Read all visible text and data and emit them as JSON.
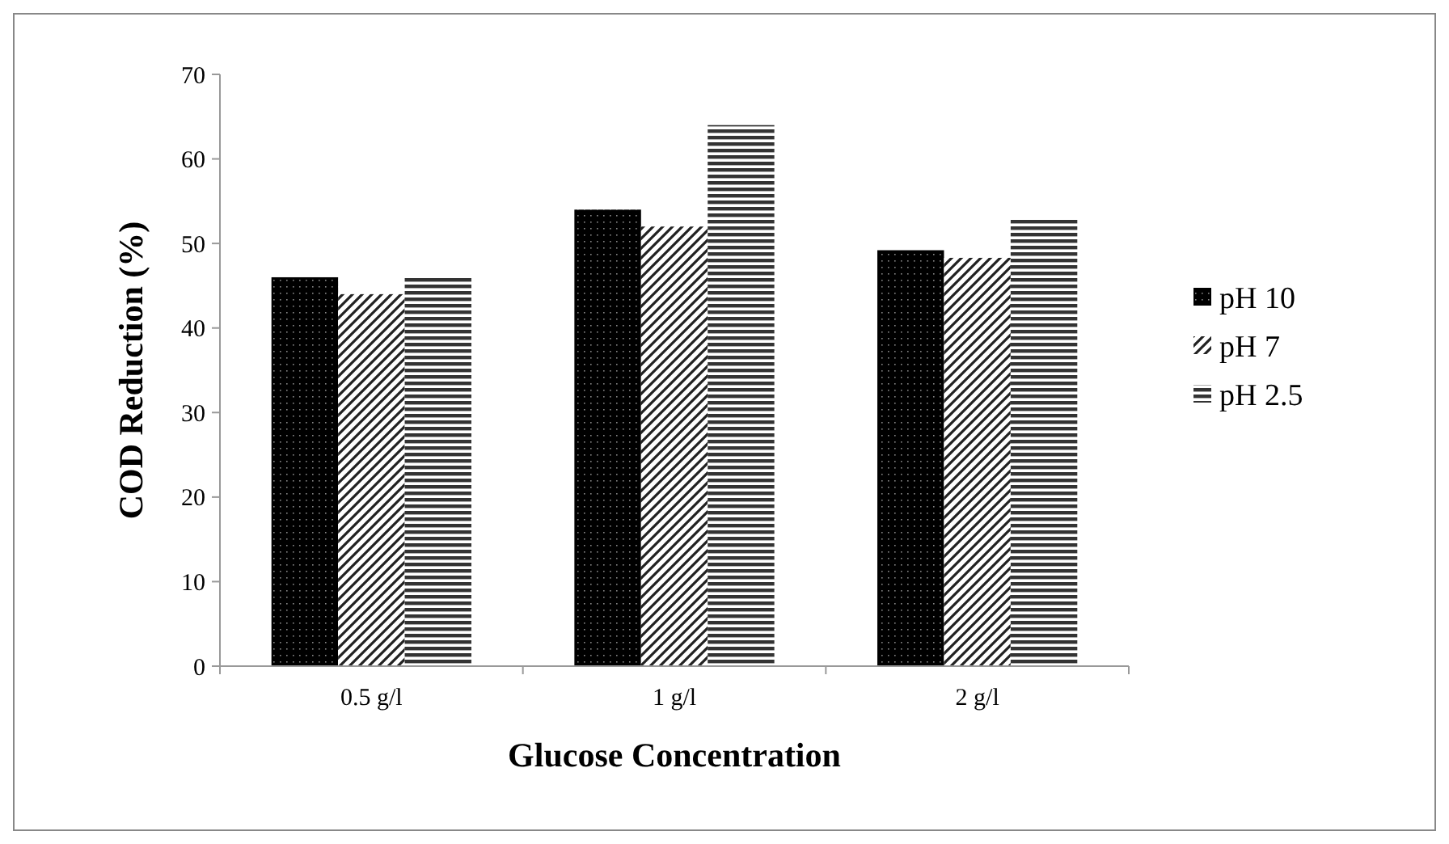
{
  "chart_data": {
    "type": "bar",
    "xlabel": "Glucose Concentration",
    "ylabel": "COD Reduction (%)",
    "categories": [
      "0.5 g/l",
      "1 g/l",
      "2 g/l"
    ],
    "series": [
      {
        "name": "pH 10",
        "color": "#000000",
        "values": [
          46,
          54,
          49.2
        ]
      },
      {
        "name": "pH 7",
        "color": "#222222",
        "values": [
          44,
          52,
          48.3
        ]
      },
      {
        "name": "pH 2.5",
        "color": "#333333",
        "values": [
          46,
          64,
          53
        ]
      }
    ],
    "ylim": [
      0,
      70
    ],
    "yticks": [
      0,
      10,
      20,
      30,
      40,
      50,
      60,
      70
    ],
    "grid": false,
    "legend": "right"
  }
}
